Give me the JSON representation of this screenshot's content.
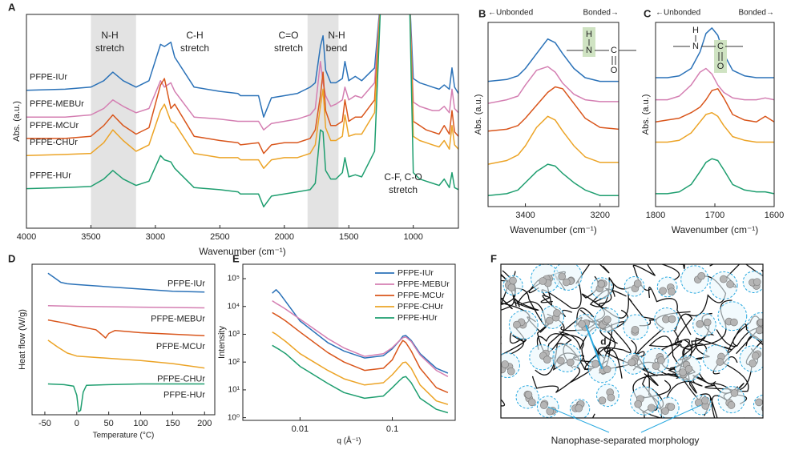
{
  "chart_data": [
    {
      "type": "line",
      "label": "A",
      "xlabel": "Wavenumber (cm⁻¹)",
      "ylabel": "Abs. (a.u.)",
      "xlim": [
        4000,
        650
      ],
      "ylim": [
        0,
        10
      ],
      "xticks": [
        4000,
        3500,
        3000,
        2500,
        2000,
        1500,
        1000
      ],
      "bands": [
        [
          3500,
          3150
        ],
        [
          1820,
          1580
        ]
      ],
      "band_color": "#e3e3e3",
      "annotations": [
        [
          "N-H",
          "stretch"
        ],
        [
          "C-H",
          "stretch"
        ],
        [
          "C=O",
          "stretch"
        ],
        [
          "N-H",
          "bend"
        ],
        [
          "C-F, C-O",
          "stretch"
        ]
      ],
      "series_labels": "left",
      "x": [
        4000,
        3700,
        3500,
        3400,
        3330,
        3250,
        3150,
        3050,
        2960,
        2930,
        2880,
        2850,
        2700,
        2500,
        2360,
        2340,
        2200,
        2160,
        2100,
        2000,
        1900,
        1800,
        1760,
        1720,
        1700,
        1680,
        1640,
        1600,
        1550,
        1530,
        1500,
        1450,
        1400,
        1300,
        1250,
        1200,
        1030,
        1000,
        950,
        900,
        850,
        800,
        760,
        720,
        700,
        680,
        650
      ],
      "series": [
        {
          "name": "PFPE-IUr",
          "color": "#2b72b8",
          "values": [
            6.45,
            6.5,
            6.6,
            6.9,
            7.3,
            6.9,
            6.6,
            6.9,
            8.6,
            8.5,
            8.7,
            8.0,
            6.6,
            6.4,
            6.3,
            6.2,
            6.2,
            5.2,
            6.1,
            6.2,
            6.3,
            6.6,
            6.8,
            8.5,
            9.0,
            7.4,
            6.8,
            6.8,
            7.0,
            7.8,
            6.9,
            7.1,
            6.9,
            7.5,
            11,
            null,
            11,
            7.0,
            6.8,
            6.7,
            6.6,
            6.5,
            6.7,
            6.5,
            7.5,
            6.6,
            6.3
          ]
        },
        {
          "name": "PFPE-MEBUr",
          "color": "#d47fb2",
          "values": [
            5.2,
            5.2,
            5.3,
            5.6,
            6.0,
            5.7,
            5.4,
            5.6,
            6.9,
            6.6,
            6.8,
            6.4,
            5.2,
            5.1,
            5.0,
            5.0,
            5.0,
            4.6,
            4.9,
            5.0,
            5.1,
            5.3,
            5.6,
            7.8,
            6.8,
            6.2,
            5.7,
            5.8,
            6.0,
            6.6,
            6.0,
            6.2,
            6.1,
            6.8,
            11,
            null,
            11,
            5.9,
            5.7,
            5.6,
            5.5,
            5.5,
            5.7,
            5.4,
            6.5,
            5.6,
            5.4
          ]
        },
        {
          "name": "PFPE-MCUr",
          "color": "#d9561c",
          "values": [
            4.2,
            4.2,
            4.3,
            4.8,
            5.3,
            4.8,
            4.4,
            4.7,
            6.7,
            7.0,
            5.6,
            5.8,
            4.3,
            4.1,
            4.0,
            3.9,
            4.0,
            3.5,
            3.9,
            4.0,
            4.0,
            4.2,
            4.6,
            6.2,
            7.3,
            5.5,
            4.8,
            4.8,
            5.0,
            6.0,
            5.0,
            5.2,
            5.2,
            6.0,
            11,
            null,
            11,
            5.0,
            4.8,
            4.6,
            4.5,
            4.4,
            4.8,
            4.4,
            5.5,
            4.5,
            4.3
          ]
        },
        {
          "name": "PFPE-CHUr",
          "color": "#eca427",
          "values": [
            3.4,
            3.45,
            3.5,
            4.0,
            4.6,
            4.1,
            3.6,
            3.9,
            5.5,
            5.8,
            5.0,
            4.9,
            3.5,
            3.3,
            3.3,
            3.2,
            3.2,
            2.8,
            3.2,
            3.3,
            3.3,
            3.5,
            3.9,
            5.7,
            6.5,
            4.7,
            4.1,
            4.1,
            4.3,
            5.3,
            4.3,
            4.4,
            4.4,
            5.4,
            11,
            null,
            11,
            4.3,
            4.1,
            4.0,
            3.9,
            3.8,
            4.1,
            3.7,
            4.8,
            3.9,
            3.7
          ]
        },
        {
          "name": "PFPE-HUr",
          "color": "#1e9e6f",
          "values": [
            1.85,
            1.9,
            1.95,
            2.3,
            2.7,
            2.3,
            2.0,
            2.2,
            3.4,
            3.2,
            3.1,
            2.8,
            1.9,
            1.8,
            1.7,
            1.6,
            1.6,
            1.0,
            1.5,
            1.6,
            1.7,
            1.8,
            2.1,
            4.6,
            4.5,
            2.7,
            2.3,
            2.3,
            2.6,
            3.3,
            2.4,
            2.5,
            2.4,
            3.6,
            11,
            null,
            11,
            2.6,
            2.3,
            2.2,
            2.1,
            2.0,
            2.3,
            1.9,
            2.6,
            1.9,
            1.8
          ]
        }
      ]
    },
    {
      "type": "line",
      "label": "B",
      "xlabel": "Wavenumber (cm⁻¹)",
      "ylabel": "Abs. (a.u.)",
      "xlim": [
        3500,
        3150
      ],
      "ylim": [
        0,
        10
      ],
      "xticks": [
        3400,
        3200
      ],
      "direction_labels": [
        "←Unbonded",
        "Bonded→"
      ],
      "structure": [
        "H",
        "N",
        "C",
        "O"
      ],
      "highlight_color": "#cfe3c2",
      "x": [
        3500,
        3450,
        3420,
        3400,
        3370,
        3340,
        3320,
        3300,
        3270,
        3240,
        3200,
        3150
      ],
      "series": [
        {
          "color": "#2b72b8",
          "values": [
            6.8,
            6.9,
            7.1,
            7.5,
            8.3,
            9.1,
            8.9,
            8.3,
            7.5,
            7.0,
            6.8,
            6.8
          ]
        },
        {
          "color": "#d47fb2",
          "values": [
            5.6,
            5.8,
            6.0,
            6.6,
            7.4,
            7.6,
            7.3,
            6.7,
            6.1,
            5.8,
            5.7,
            5.7
          ]
        },
        {
          "color": "#d9561c",
          "values": [
            4.1,
            4.2,
            4.4,
            4.8,
            5.5,
            6.2,
            6.5,
            6.4,
            5.6,
            4.8,
            4.3,
            4.2
          ]
        },
        {
          "color": "#eca427",
          "values": [
            2.3,
            2.5,
            2.8,
            3.3,
            4.3,
            4.9,
            4.7,
            4.1,
            3.3,
            2.7,
            2.4,
            2.4
          ]
        },
        {
          "color": "#1e9e6f",
          "values": [
            0.6,
            0.7,
            0.9,
            1.3,
            1.9,
            2.3,
            2.2,
            1.8,
            1.3,
            0.9,
            0.6,
            0.6
          ]
        }
      ]
    },
    {
      "type": "line",
      "label": "C",
      "xlabel": "Wavenumber (cm⁻¹)",
      "ylabel": "Abs. (a.u.)",
      "xlim": [
        1800,
        1600
      ],
      "ylim": [
        0,
        10
      ],
      "xticks": [
        1800,
        1700,
        1600
      ],
      "direction_labels": [
        "←Unbonded",
        "Bonded→"
      ],
      "structure": [
        "H",
        "N",
        "C",
        "O"
      ],
      "highlight_color": "#cfe3c2",
      "x": [
        1800,
        1780,
        1760,
        1740,
        1725,
        1715,
        1705,
        1695,
        1685,
        1670,
        1650,
        1630,
        1615,
        1600
      ],
      "series": [
        {
          "color": "#2b72b8",
          "values": [
            7.0,
            7.0,
            7.1,
            7.5,
            8.4,
            9.4,
            9.7,
            9.3,
            8.3,
            7.4,
            7.1,
            7.0,
            7.0,
            7.0
          ]
        },
        {
          "color": "#d47fb2",
          "values": [
            5.8,
            5.8,
            6.0,
            6.6,
            7.3,
            7.5,
            7.2,
            6.6,
            6.2,
            5.9,
            5.8,
            5.8,
            5.9,
            5.8
          ]
        },
        {
          "color": "#d9561c",
          "values": [
            4.6,
            4.7,
            4.8,
            5.1,
            5.4,
            5.8,
            6.3,
            6.4,
            5.9,
            5.0,
            4.7,
            4.6,
            4.9,
            4.6
          ]
        },
        {
          "color": "#eca427",
          "values": [
            3.5,
            3.5,
            3.6,
            4.0,
            4.6,
            5.0,
            5.1,
            4.9,
            4.4,
            3.8,
            3.6,
            3.5,
            3.5,
            3.5
          ]
        },
        {
          "color": "#1e9e6f",
          "values": [
            0.7,
            0.7,
            0.8,
            1.2,
            1.9,
            2.4,
            2.6,
            2.5,
            2.0,
            1.2,
            0.9,
            0.8,
            0.8,
            0.7
          ]
        }
      ]
    },
    {
      "type": "line",
      "label": "D",
      "xlabel": "Temperature (°C)",
      "ylabel": "Heat flow (W/g)",
      "xlim": [
        -70,
        216
      ],
      "ylim": [
        0,
        10
      ],
      "xticks": [
        -50,
        0,
        50,
        100,
        150,
        200
      ],
      "series_labels": "right",
      "series": [
        {
          "name": "PFPE-IUr",
          "color": "#2b72b8",
          "x": [
            -45,
            -35,
            -25,
            -15,
            0,
            50,
            100,
            150,
            200
          ],
          "values": [
            9.4,
            9.1,
            8.8,
            8.7,
            8.65,
            8.5,
            8.35,
            8.2,
            8.15
          ]
        },
        {
          "name": "PFPE-MEBUr",
          "color": "#d47fb2",
          "x": [
            -45,
            0,
            100,
            200
          ],
          "values": [
            7.25,
            7.2,
            7.15,
            7.1
          ]
        },
        {
          "name": "PFPE-MCUr",
          "color": "#d9561c",
          "x": [
            -45,
            -20,
            0,
            30,
            40,
            45,
            50,
            60,
            100,
            150,
            200
          ],
          "values": [
            6.3,
            6.1,
            5.9,
            5.65,
            5.3,
            5.1,
            5.4,
            5.6,
            5.45,
            5.35,
            5.25
          ]
        },
        {
          "name": "PFPE-CHUr",
          "color": "#eca427",
          "x": [
            -45,
            -30,
            -15,
            0,
            50,
            100,
            150,
            200
          ],
          "values": [
            4.95,
            4.5,
            4.1,
            3.9,
            3.75,
            3.6,
            3.4,
            3.1
          ]
        },
        {
          "name": "PFPE-HUr",
          "color": "#1e9e6f",
          "x": [
            -45,
            -20,
            -5,
            0,
            3,
            6,
            10,
            15,
            50,
            100,
            200
          ],
          "values": [
            2.05,
            2.0,
            1.9,
            1.3,
            0.2,
            0.3,
            1.5,
            1.95,
            2.0,
            2.05,
            2.05
          ]
        }
      ]
    },
    {
      "type": "line",
      "label": "E",
      "xlabel": "q (Å⁻¹)",
      "ylabel": "Intensity",
      "xscale": "log",
      "yscale": "log",
      "xlim": [
        0.0024,
        0.48
      ],
      "ylim": [
        0.8,
        330000
      ],
      "xticks": [
        0.01,
        0.1
      ],
      "yticks": [
        {
          "value": 1,
          "label": "10⁰"
        },
        {
          "value": 10,
          "label": "10¹"
        },
        {
          "value": 100,
          "label": "10²"
        },
        {
          "value": 1000,
          "label": "10³"
        },
        {
          "value": 10000,
          "label": "10⁴"
        },
        {
          "value": 100000,
          "label": "10⁵"
        }
      ],
      "legend": "upper right",
      "x": [
        0.005,
        0.0055,
        0.006,
        0.007,
        0.01,
        0.02,
        0.03,
        0.05,
        0.08,
        0.1,
        0.12,
        0.13,
        0.14,
        0.16,
        0.2,
        0.3,
        0.4
      ],
      "series": [
        {
          "name": "PFPE-IUr",
          "color": "#2b72b8",
          "values": [
            30000,
            40000,
            30000,
            15000,
            3000,
            500,
            250,
            140,
            170,
            300,
            600,
            850,
            900,
            600,
            200,
            60,
            40
          ]
        },
        {
          "name": "PFPE-MEBUr",
          "color": "#d47fb2",
          "values": [
            16000,
            13000,
            11000,
            8000,
            3500,
            700,
            320,
            160,
            200,
            330,
            600,
            750,
            800,
            550,
            180,
            50,
            30
          ]
        },
        {
          "name": "PFPE-MCUr",
          "color": "#d9561c",
          "values": [
            6000,
            5000,
            4200,
            3000,
            1200,
            220,
            100,
            50,
            60,
            120,
            400,
            600,
            500,
            250,
            60,
            12,
            8
          ]
        },
        {
          "name": "PFPE-CHUr",
          "color": "#eca427",
          "values": [
            1200,
            1000,
            800,
            550,
            200,
            50,
            25,
            15,
            18,
            35,
            70,
            95,
            100,
            60,
            15,
            4,
            3
          ]
        },
        {
          "name": "PFPE-HUr",
          "color": "#1e9e6f",
          "values": [
            400,
            330,
            280,
            200,
            70,
            17,
            8,
            5,
            6,
            12,
            22,
            28,
            30,
            18,
            5,
            2,
            1.5
          ]
        }
      ]
    }
  ],
  "diagram": {
    "label": "F",
    "distance_label": "d",
    "caption": "Nanophase-separated morphology",
    "accent_color": "#29a9e0"
  }
}
